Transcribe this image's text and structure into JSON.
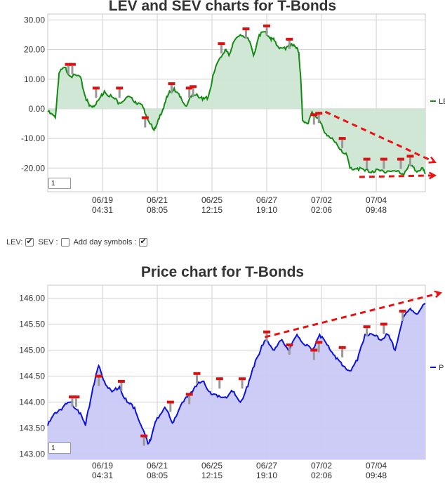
{
  "colors": {
    "lev_line": "#138a13",
    "lev_fill": "#cfe6d3",
    "price_line": "#0b12e0",
    "price_fill": "#c9c9f7",
    "trend": "#ee1111",
    "grid": "#d0d0d0",
    "marker_red": "#dd1111",
    "marker_grey": "#999999"
  },
  "controls": {
    "lev_label": "LEV:",
    "sev_label": "SEV :",
    "day_label": "Add day symbols :",
    "lev_checked": true,
    "sev_checked": false,
    "day_checked": true
  },
  "chart_data": [
    {
      "type": "area",
      "title": "LEV and SEV charts for T-Bonds",
      "legend": "LEV",
      "legend_position": "right",
      "zoom_value": "1",
      "grid": true,
      "ylim": [
        -28,
        32
      ],
      "yticks": [
        "30.00",
        "20.00",
        "10.00",
        "0.00",
        "-10.00",
        "-20.00"
      ],
      "ytick_values": [
        30,
        20,
        10,
        0,
        -10,
        -20
      ],
      "xtick_labels": [
        [
          "06/19",
          "04:31"
        ],
        [
          "06/21",
          "08:05"
        ],
        [
          "06/25",
          "12:15"
        ],
        [
          "06/27",
          "19:10"
        ],
        [
          "07/02",
          "02:06"
        ],
        [
          "07/04",
          "09:48"
        ]
      ],
      "xtick_positions": [
        0.145,
        0.29,
        0.435,
        0.58,
        0.725,
        0.87
      ],
      "x": [
        0,
        0.02,
        0.03,
        0.045,
        0.06,
        0.085,
        0.1,
        0.11,
        0.12,
        0.135,
        0.15,
        0.17,
        0.19,
        0.21,
        0.225,
        0.24,
        0.255,
        0.27,
        0.28,
        0.29,
        0.3,
        0.31,
        0.32,
        0.335,
        0.35,
        0.365,
        0.38,
        0.395,
        0.41,
        0.425,
        0.44,
        0.455,
        0.47,
        0.48,
        0.49,
        0.51,
        0.53,
        0.545,
        0.56,
        0.575,
        0.59,
        0.6,
        0.61,
        0.63,
        0.645,
        0.655,
        0.665,
        0.67,
        0.675,
        0.69,
        0.7,
        0.715,
        0.73,
        0.75,
        0.77,
        0.79,
        0.8,
        0.82,
        0.84,
        0.86,
        0.88,
        0.9,
        0.92,
        0.94,
        0.96,
        0.975,
        0.99,
        1.0
      ],
      "y": [
        -1,
        -3,
        12,
        14,
        11,
        11,
        4,
        1,
        1,
        3,
        6,
        4,
        2,
        4,
        3,
        2,
        0,
        -5,
        -7,
        -5,
        -2,
        2,
        5,
        7,
        4,
        1,
        4,
        5,
        3,
        4,
        12,
        17,
        20,
        18,
        22,
        25,
        24,
        18,
        25,
        26,
        24,
        23,
        21,
        20,
        22,
        21,
        19,
        10,
        -4,
        -5,
        -1,
        -3,
        -7,
        -10,
        -13,
        -15,
        -20,
        -20,
        -21,
        -21,
        -21,
        -21,
        -21,
        -22,
        -19,
        -21,
        -20,
        -22
      ],
      "markers": [
        {
          "x": 0.055,
          "y": 15.0
        },
        {
          "x": 0.065,
          "y": 15.0
        },
        {
          "x": 0.128,
          "y": 7.0
        },
        {
          "x": 0.19,
          "y": 7.0
        },
        {
          "x": 0.258,
          "y": -3.0
        },
        {
          "x": 0.328,
          "y": 8.5
        },
        {
          "x": 0.375,
          "y": 7.0
        },
        {
          "x": 0.385,
          "y": 7.5
        },
        {
          "x": 0.46,
          "y": 22.0
        },
        {
          "x": 0.525,
          "y": 27.0
        },
        {
          "x": 0.58,
          "y": 28.0
        },
        {
          "x": 0.64,
          "y": 23.5
        },
        {
          "x": 0.705,
          "y": -2.0
        },
        {
          "x": 0.718,
          "y": -1.5
        },
        {
          "x": 0.78,
          "y": -10.0
        },
        {
          "x": 0.845,
          "y": -17.0
        },
        {
          "x": 0.89,
          "y": -17.0
        },
        {
          "x": 0.935,
          "y": -17.0
        },
        {
          "x": 0.96,
          "y": -16.0
        }
      ],
      "trend_lines": [
        {
          "from": [
            0.735,
            -1.0
          ],
          "to": [
            1.025,
            -18.0
          ]
        },
        {
          "from": [
            0.825,
            -23.0
          ],
          "to": [
            1.025,
            -22.5
          ]
        }
      ]
    },
    {
      "type": "area",
      "title": "Price chart for T-Bonds",
      "legend": "P",
      "legend_position": "right",
      "zoom_value": "1",
      "grid": true,
      "ylim": [
        142.9,
        146.25
      ],
      "yticks": [
        "146.00",
        "145.50",
        "145.00",
        "144.50",
        "144.00",
        "143.50",
        "143.00"
      ],
      "ytick_values": [
        146.0,
        145.5,
        145.0,
        144.5,
        144.0,
        143.5,
        143.0
      ],
      "xtick_labels": [
        [
          "06/19",
          "04:31"
        ],
        [
          "06/21",
          "08:05"
        ],
        [
          "06/25",
          "12:15"
        ],
        [
          "06/27",
          "19:10"
        ],
        [
          "07/02",
          "02:06"
        ],
        [
          "07/04",
          "09:48"
        ]
      ],
      "xtick_positions": [
        0.145,
        0.29,
        0.435,
        0.58,
        0.725,
        0.87
      ],
      "x": [
        0,
        0.02,
        0.04,
        0.06,
        0.08,
        0.1,
        0.12,
        0.135,
        0.15,
        0.17,
        0.19,
        0.21,
        0.23,
        0.25,
        0.265,
        0.275,
        0.29,
        0.31,
        0.33,
        0.35,
        0.37,
        0.39,
        0.41,
        0.43,
        0.45,
        0.47,
        0.49,
        0.51,
        0.53,
        0.55,
        0.57,
        0.58,
        0.6,
        0.62,
        0.64,
        0.66,
        0.68,
        0.7,
        0.72,
        0.74,
        0.76,
        0.78,
        0.8,
        0.82,
        0.84,
        0.86,
        0.88,
        0.9,
        0.92,
        0.94,
        0.96,
        0.98,
        1.0
      ],
      "y": [
        143.55,
        143.8,
        143.9,
        144.0,
        143.85,
        143.55,
        144.3,
        144.7,
        144.4,
        144.2,
        144.3,
        144.0,
        143.9,
        143.5,
        143.2,
        143.35,
        143.7,
        143.9,
        143.6,
        143.9,
        144.1,
        144.3,
        144.4,
        144.2,
        144.1,
        144.1,
        144.2,
        144.0,
        144.3,
        144.8,
        145.1,
        145.2,
        145.0,
        145.2,
        145.0,
        145.3,
        145.1,
        145.0,
        145.3,
        145.1,
        144.9,
        144.7,
        144.6,
        144.8,
        145.3,
        145.3,
        145.2,
        145.3,
        145.0,
        145.6,
        145.8,
        145.7,
        145.9
      ],
      "markers": [
        {
          "x": 0.065,
          "y": 144.1
        },
        {
          "x": 0.075,
          "y": 144.1
        },
        {
          "x": 0.135,
          "y": 144.5
        },
        {
          "x": 0.195,
          "y": 144.4
        },
        {
          "x": 0.255,
          "y": 143.35
        },
        {
          "x": 0.325,
          "y": 144.0
        },
        {
          "x": 0.375,
          "y": 144.15
        },
        {
          "x": 0.395,
          "y": 144.55
        },
        {
          "x": 0.455,
          "y": 144.45
        },
        {
          "x": 0.515,
          "y": 144.45
        },
        {
          "x": 0.58,
          "y": 145.35
        },
        {
          "x": 0.64,
          "y": 145.1
        },
        {
          "x": 0.705,
          "y": 145.0
        },
        {
          "x": 0.718,
          "y": 145.15
        },
        {
          "x": 0.78,
          "y": 145.05
        },
        {
          "x": 0.845,
          "y": 145.45
        },
        {
          "x": 0.89,
          "y": 145.5
        },
        {
          "x": 0.94,
          "y": 145.75
        }
      ],
      "trend_lines": [
        {
          "from": [
            0.575,
            145.25
          ],
          "to": [
            1.04,
            146.1
          ]
        }
      ]
    }
  ]
}
